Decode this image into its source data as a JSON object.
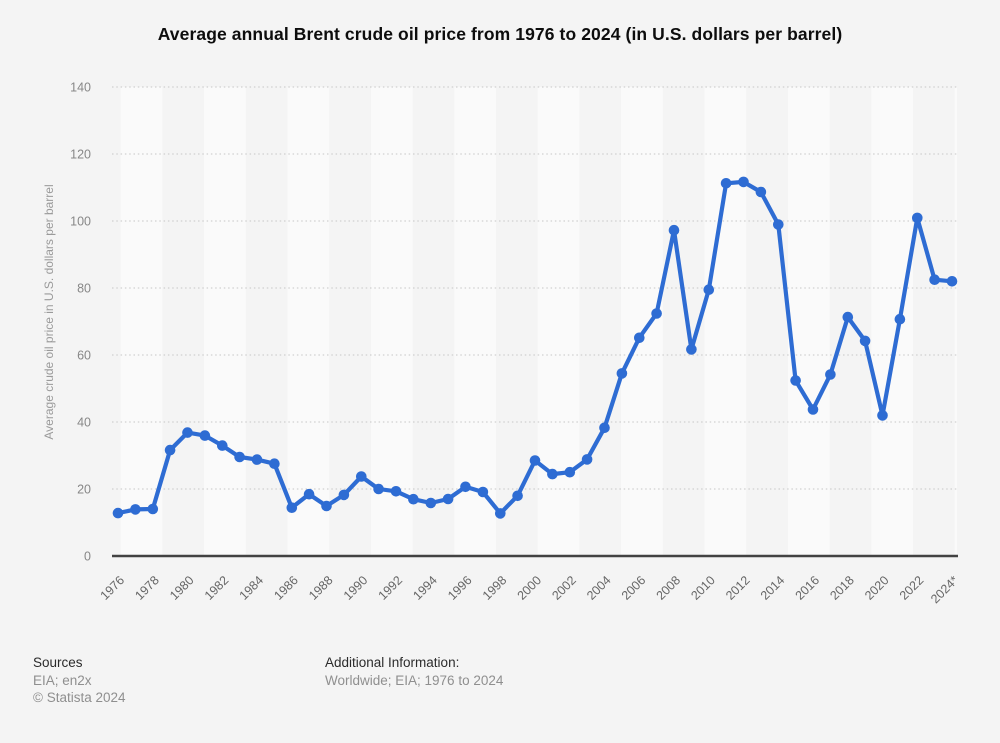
{
  "chart_data": {
    "type": "line",
    "title": "Average annual Brent crude oil price from 1976 to 2024 (in U.S. dollars per barrel)",
    "xlabel": "",
    "ylabel": "Average crude oil price in U.S. dollars per barrel",
    "ylim": [
      0,
      140
    ],
    "yticks": [
      0,
      20,
      40,
      60,
      80,
      100,
      120,
      140
    ],
    "x_ticks": [
      1976,
      1978,
      1980,
      1982,
      1984,
      1986,
      1988,
      1990,
      1992,
      1994,
      1996,
      1998,
      2000,
      2002,
      2004,
      2006,
      2008,
      2010,
      2012,
      2014,
      2016,
      2018,
      2020,
      2022,
      2024
    ],
    "x_tick_labels": [
      "1976",
      "1978",
      "1980",
      "1982",
      "1984",
      "1986",
      "1988",
      "1990",
      "1992",
      "1994",
      "1996",
      "1998",
      "2000",
      "2002",
      "2004",
      "2006",
      "2008",
      "2010",
      "2012",
      "2014",
      "2016",
      "2018",
      "2020",
      "2022",
      "2024*"
    ],
    "x": [
      1976,
      1977,
      1978,
      1979,
      1980,
      1981,
      1982,
      1983,
      1984,
      1985,
      1986,
      1987,
      1988,
      1989,
      1990,
      1991,
      1992,
      1993,
      1994,
      1995,
      1996,
      1997,
      1998,
      1999,
      2000,
      2001,
      2002,
      2003,
      2004,
      2005,
      2006,
      2007,
      2008,
      2009,
      2010,
      2011,
      2012,
      2013,
      2014,
      2015,
      2016,
      2017,
      2018,
      2019,
      2020,
      2021,
      2022,
      2023,
      2024
    ],
    "series": [
      {
        "name": "Brent crude oil price in U.S. dollars per barrel",
        "values": [
          12.8,
          13.92,
          14.02,
          31.61,
          36.83,
          35.93,
          32.97,
          29.55,
          28.78,
          27.56,
          14.43,
          18.44,
          14.92,
          18.23,
          23.73,
          20.0,
          19.32,
          16.97,
          15.82,
          17.02,
          20.67,
          19.09,
          12.72,
          17.97,
          28.5,
          24.44,
          25.02,
          28.83,
          38.27,
          54.52,
          65.14,
          72.39,
          97.26,
          61.67,
          79.5,
          111.26,
          111.67,
          108.66,
          98.95,
          52.39,
          43.73,
          54.19,
          71.31,
          64.21,
          41.96,
          70.68,
          100.93,
          82.49,
          82.0
        ]
      }
    ],
    "grid": "horizontal-dotted",
    "legend": "none"
  },
  "colors": {
    "background": "#f4f4f4",
    "band_light": "#fafafa",
    "line": "#2e6cd3",
    "grid": "#c6c6c6",
    "axis_line": "#424242",
    "y_tick_label": "#878787",
    "x_tick_label": "#666666",
    "axis_title": "#9a9a9a",
    "title_text": "#0d0d0d"
  },
  "footer": {
    "sources_label": "Sources",
    "sources_value": "EIA; en2x",
    "copyright": "© Statista 2024",
    "additional_info_label": "Additional Information:",
    "additional_info_value": "Worldwide; EIA; 1976 to 2024"
  }
}
